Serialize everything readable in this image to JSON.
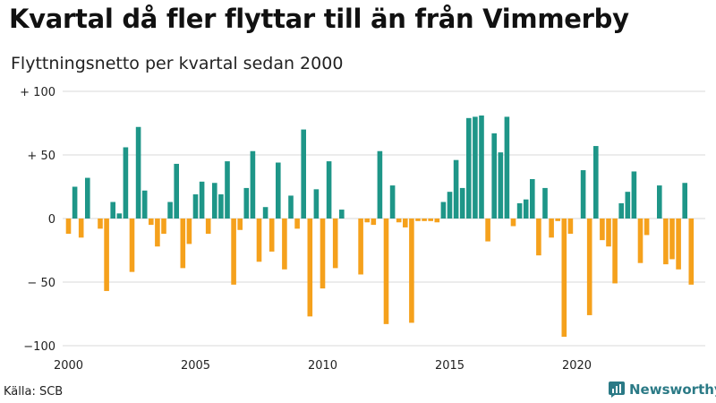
{
  "header": {
    "title": "Kvartal då fler flyttar till än från Vimmerby",
    "subtitle": "Flyttningsnetto per kvartal sedan 2000"
  },
  "footer": {
    "source": "Källa: SCB",
    "brand": "Newsworthy",
    "brand_icon": "chart-logo-icon"
  },
  "colors": {
    "positive": "#1e9688",
    "negative": "#f5a11c",
    "grid": "#d8d8d8",
    "brand": "#2b7a86"
  },
  "chart_data": {
    "type": "bar",
    "title": "Kvartal då fler flyttar till än från Vimmerby",
    "subtitle": "Flyttningsnetto per kvartal sedan 2000",
    "xlabel": "",
    "ylabel": "",
    "ylim": [
      -100,
      100
    ],
    "grid": true,
    "yticks": [
      {
        "value": 100,
        "label": "+ 100"
      },
      {
        "value": 50,
        "label": "+  50"
      },
      {
        "value": 0,
        "label": "0"
      },
      {
        "value": -50,
        "label": "− 50"
      },
      {
        "value": -100,
        "label": "−100"
      }
    ],
    "xticks": [
      {
        "year": 2000,
        "label": "2000"
      },
      {
        "year": 2005,
        "label": "2005"
      },
      {
        "year": 2010,
        "label": "2010"
      },
      {
        "year": 2015,
        "label": "2015"
      },
      {
        "year": 2020,
        "label": "2020"
      }
    ],
    "start_year": 2000,
    "series": [
      {
        "values": [
          -12,
          25,
          -15,
          32,
          0,
          -8,
          -57,
          13,
          4,
          56,
          -42,
          72,
          22,
          -5,
          -22,
          -12,
          13,
          43,
          -39,
          -20,
          19,
          29,
          -12,
          28,
          19,
          45,
          -52,
          -9,
          24,
          53,
          -34,
          9,
          -26,
          44,
          -40,
          18,
          -8,
          70,
          -77,
          23,
          -55,
          45,
          -39,
          7,
          0,
          0,
          -44,
          -3,
          -5,
          53,
          -83,
          26,
          -3,
          -7,
          -82,
          -2,
          -2,
          -2,
          -3,
          13,
          21,
          46,
          24,
          79,
          80,
          81,
          -18,
          67,
          52,
          80,
          -6,
          12,
          15,
          31,
          -29,
          24,
          -15,
          -2,
          -93,
          -12,
          0,
          38,
          -76,
          57,
          -17,
          -22,
          -51,
          12,
          21,
          37,
          -35,
          -13,
          0,
          26,
          -36,
          -32,
          -40,
          28,
          -52
        ]
      }
    ]
  }
}
